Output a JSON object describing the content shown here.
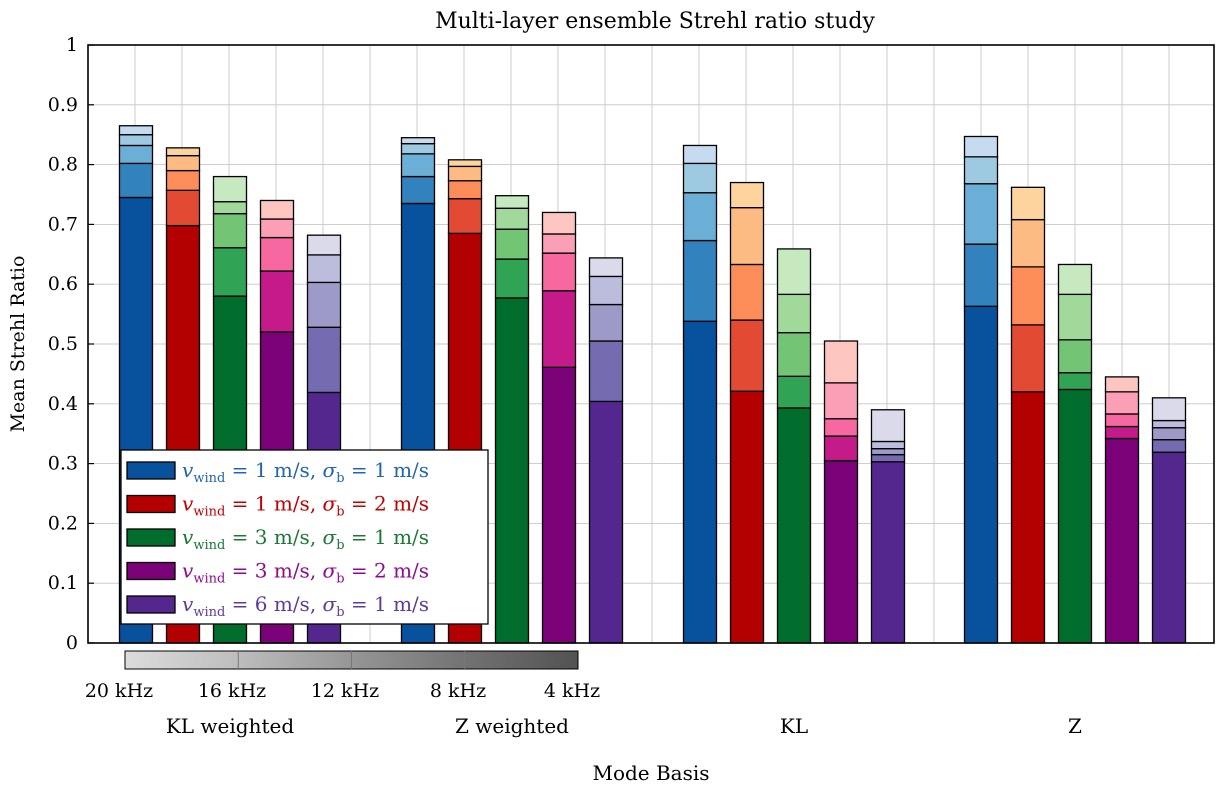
{
  "chart_data": {
    "type": "bar",
    "subtype": "stacked-bar",
    "title": "Multi-layer ensemble Strehl ratio study",
    "xlabel": "Mode Basis",
    "ylabel": "Mean Strehl Ratio",
    "ylim": [
      0,
      1
    ],
    "yticks": [
      "0",
      "0.1",
      "0.2",
      "0.3",
      "0.4",
      "0.5",
      "0.6",
      "0.7",
      "0.8",
      "0.9",
      "1"
    ],
    "grid": true,
    "categories": [
      "KL weighted",
      "Z weighted",
      "KL",
      "Z"
    ],
    "frequencies": [
      "20 kHz",
      "16 kHz",
      "12 kHz",
      "8 kHz",
      "4 kHz"
    ],
    "series": [
      {
        "name": "v_wind = 1 m/s, σ_b = 1 m/s",
        "legend": {
          "v": "v",
          "vsub": "wind",
          "vval": " = 1 m/s, ",
          "s": "σ",
          "ssub": "b",
          "sval": " = 1 m/s"
        },
        "text_color": "#2166ac",
        "colors": [
          "#08519c",
          "#3182bd",
          "#6baed6",
          "#9ecae1",
          "#c6dbef"
        ],
        "values": [
          [
            0.745,
            0.802,
            0.832,
            0.85,
            0.865
          ],
          [
            0.735,
            0.78,
            0.818,
            0.835,
            0.845
          ],
          [
            0.538,
            0.673,
            0.753,
            0.802,
            0.832
          ],
          [
            0.563,
            0.667,
            0.768,
            0.813,
            0.847
          ]
        ]
      },
      {
        "name": "v_wind = 1 m/s, σ_b = 2 m/s",
        "legend": {
          "v": "v",
          "vsub": "wind",
          "vval": " = 1 m/s, ",
          "s": "σ",
          "ssub": "b",
          "sval": " = 2 m/s"
        },
        "text_color": "#c00000",
        "colors": [
          "#b30000",
          "#e34a33",
          "#fc8d59",
          "#fdbb84",
          "#fdd49e"
        ],
        "values": [
          [
            0.698,
            0.757,
            0.79,
            0.815,
            0.828
          ],
          [
            0.685,
            0.743,
            0.773,
            0.797,
            0.808
          ],
          [
            0.421,
            0.54,
            0.633,
            0.728,
            0.77
          ],
          [
            0.42,
            0.532,
            0.629,
            0.708,
            0.762
          ]
        ]
      },
      {
        "name": "v_wind = 3 m/s, σ_b = 1 m/s",
        "legend": {
          "v": "v",
          "vsub": "wind",
          "vval": " = 3 m/s, ",
          "s": "σ",
          "ssub": "b",
          "sval": " = 1 m/s"
        },
        "text_color": "#1b7837",
        "colors": [
          "#006d2c",
          "#31a354",
          "#74c476",
          "#a1d99b",
          "#c7e9c0"
        ],
        "values": [
          [
            0.58,
            0.661,
            0.718,
            0.738,
            0.78
          ],
          [
            0.577,
            0.642,
            0.692,
            0.727,
            0.748
          ],
          [
            0.393,
            0.446,
            0.519,
            0.583,
            0.659
          ],
          [
            0.424,
            0.452,
            0.507,
            0.583,
            0.633
          ]
        ]
      },
      {
        "name": "v_wind = 3 m/s, σ_b = 2 m/s",
        "legend": {
          "v": "v",
          "vsub": "wind",
          "vval": " = 3 m/s, ",
          "s": "σ",
          "ssub": "b",
          "sval": " = 2 m/s"
        },
        "text_color": "#8e0b8e",
        "colors": [
          "#7a0177",
          "#c51b8a",
          "#f768a1",
          "#fa9fb5",
          "#fcc5c0"
        ],
        "values": [
          [
            0.52,
            0.622,
            0.678,
            0.709,
            0.74
          ],
          [
            0.461,
            0.589,
            0.652,
            0.684,
            0.72
          ],
          [
            0.305,
            0.346,
            0.375,
            0.435,
            0.505
          ],
          [
            0.342,
            0.362,
            0.383,
            0.42,
            0.445
          ]
        ]
      },
      {
        "name": "v_wind = 6 m/s, σ_b = 1 m/s",
        "legend": {
          "v": "v",
          "vsub": "wind",
          "vval": " = 6 m/s, ",
          "s": "σ",
          "ssub": "b",
          "sval": " = 1 m/s"
        },
        "text_color": "#5e3c99",
        "colors": [
          "#54278f",
          "#756bb1",
          "#9e9ac8",
          "#bcbddc",
          "#dadaeb"
        ],
        "values": [
          [
            0.419,
            0.528,
            0.603,
            0.649,
            0.682
          ],
          [
            0.404,
            0.505,
            0.566,
            0.613,
            0.644
          ],
          [
            0.303,
            0.315,
            0.325,
            0.337,
            0.39
          ],
          [
            0.319,
            0.34,
            0.36,
            0.372,
            0.41
          ]
        ]
      }
    ],
    "colorbar": {
      "labels": [
        "20 kHz",
        "16 kHz",
        "12 kHz",
        "8 kHz",
        "4 kHz"
      ],
      "colors": [
        "#dcdcdc",
        "#bdbdbd",
        "#969696",
        "#737373",
        "#525252"
      ]
    },
    "legend_position": "lower-left"
  }
}
